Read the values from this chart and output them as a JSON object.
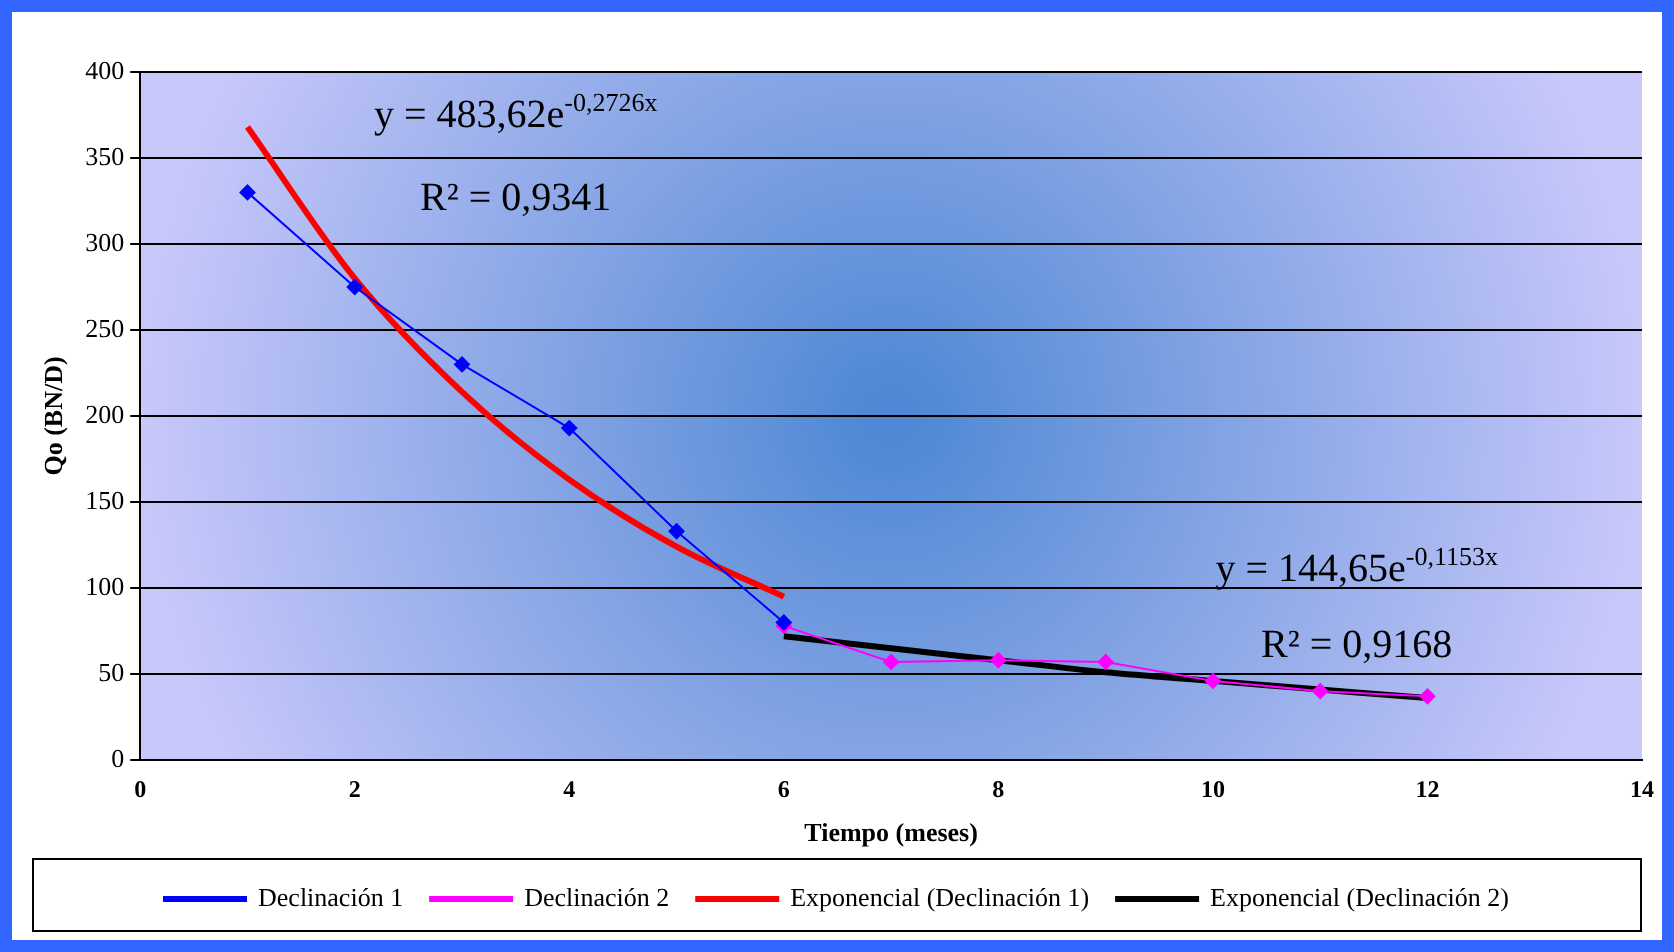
{
  "chart_data": {
    "type": "line",
    "xlabel": "Tiempo (meses)",
    "ylabel": "Qo (BN/D)",
    "xlim": [
      0,
      14
    ],
    "xticks": [
      0,
      2,
      4,
      6,
      8,
      10,
      12,
      14
    ],
    "ylim": [
      0,
      400
    ],
    "yticks": [
      0,
      50,
      100,
      150,
      200,
      250,
      300,
      350,
      400
    ],
    "grid": "y",
    "legend": "bottom",
    "line_style": "solid",
    "series": [
      {
        "name": "Declinación 1",
        "color": "#0000ff",
        "marker": "diamond",
        "x": [
          1,
          2,
          3,
          4,
          5,
          6
        ],
        "values": [
          330,
          275,
          230,
          193,
          133,
          80
        ]
      },
      {
        "name": "Declinación 2",
        "color": "#ff00ff",
        "marker": "diamond",
        "x": [
          6,
          7,
          8,
          9,
          10,
          11,
          12
        ],
        "values": [
          78,
          57,
          58,
          57,
          46,
          40,
          37
        ]
      },
      {
        "name": "Exponencial (Declinación 1)",
        "color": "#ff0000",
        "marker": "none",
        "x": [
          1,
          2,
          3,
          4,
          5,
          6
        ],
        "values": [
          368,
          280,
          214,
          163,
          124,
          95
        ]
      },
      {
        "name": "Exponencial (Declinación 2)",
        "color": "#000000",
        "marker": "none",
        "x": [
          6,
          7,
          8,
          9,
          10,
          11,
          12
        ],
        "values": [
          72,
          65,
          58,
          51,
          46,
          41,
          36
        ]
      }
    ],
    "annotations": [
      "y = 483,62e$^{-0,2726x}$",
      "R² = 0,9341",
      "y = 144,65e$^{-0,1153x}$",
      "R² = 0,9168"
    ]
  }
}
